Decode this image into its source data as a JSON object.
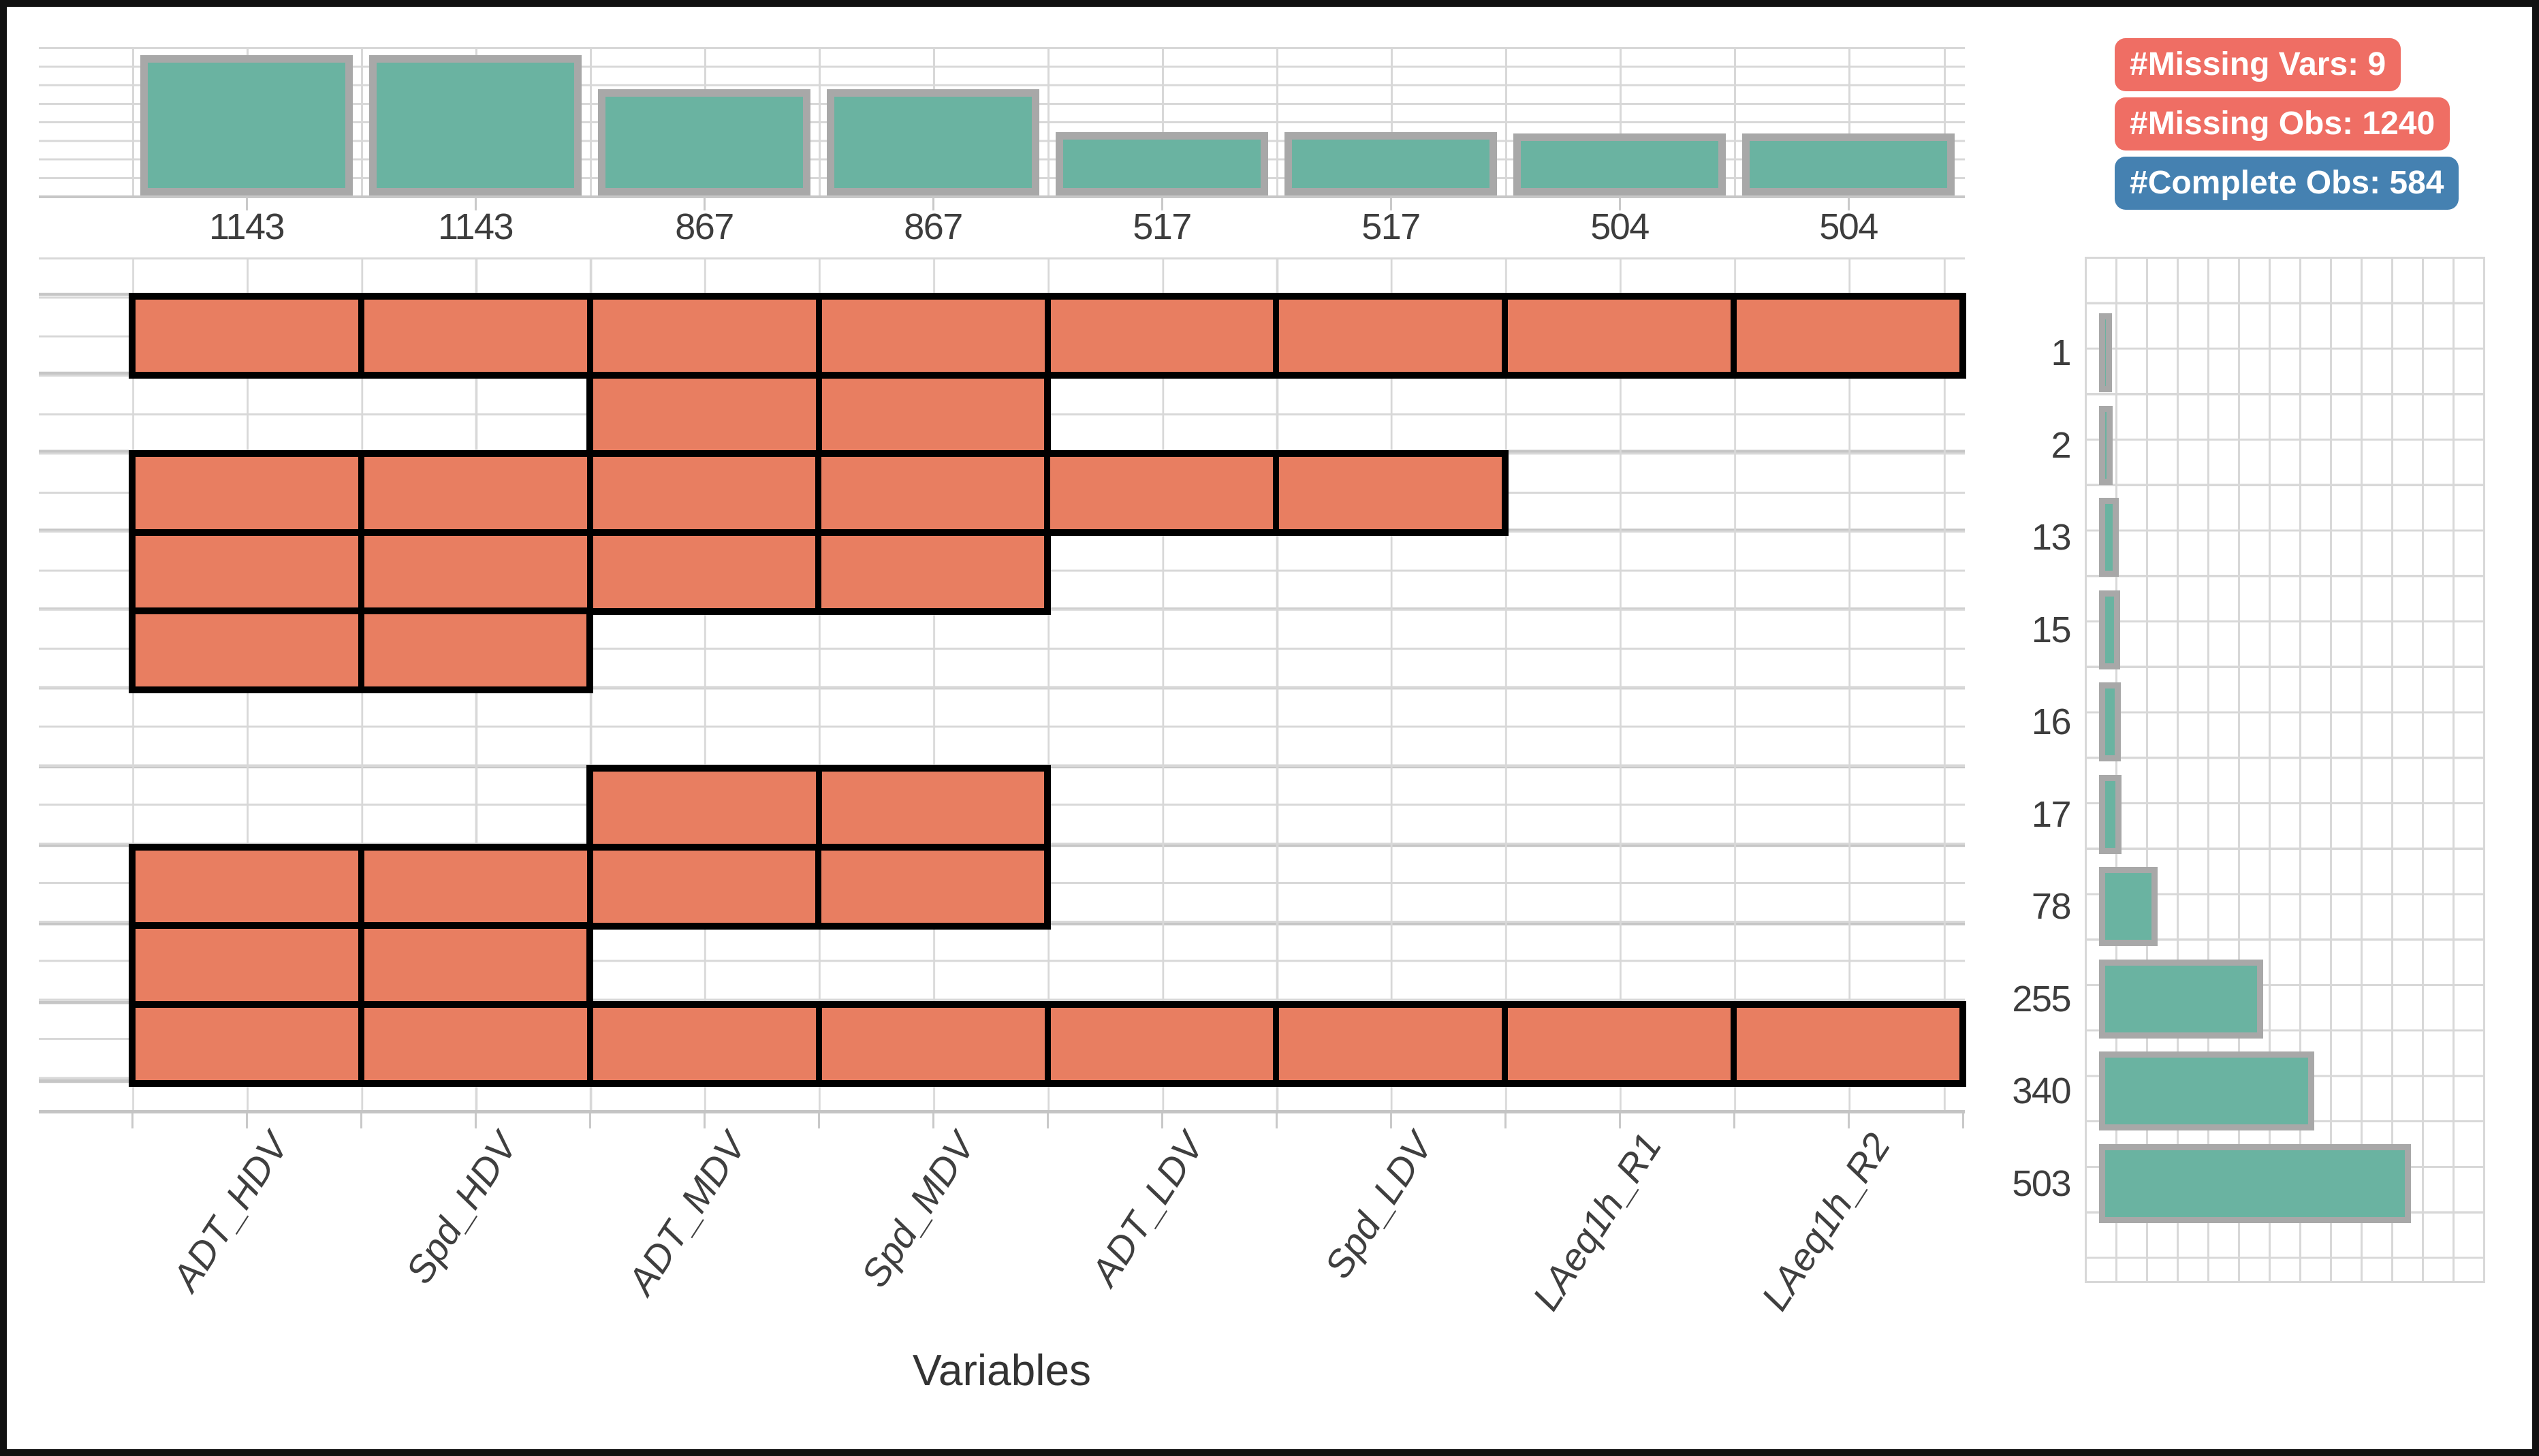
{
  "badges": {
    "missing_vars_label": "#Missing Vars: 9",
    "missing_obs_label": "#Missing Obs: 1240",
    "complete_obs_label": "#Complete Obs: 584"
  },
  "axis": {
    "x_title": "Variables"
  },
  "variables": [
    "ADT_HDV",
    "Spd_HDV",
    "ADT_MDV",
    "Spd_MDV",
    "ADT_LDV",
    "Spd_LDV",
    "LAeq1h_R1",
    "LAeq1h_R2"
  ],
  "top_counts": [
    1143,
    1143,
    867,
    867,
    517,
    517,
    504,
    504
  ],
  "pattern_counts": [
    1,
    2,
    13,
    15,
    16,
    17,
    78,
    255,
    340,
    503
  ],
  "patterns": [
    {
      "count": 1,
      "from": 1,
      "to": 8
    },
    {
      "count": 2,
      "from": 3,
      "to": 4
    },
    {
      "count": 13,
      "from": 1,
      "to": 6
    },
    {
      "count": 15,
      "from": 1,
      "to": 4
    },
    {
      "count": 16,
      "from": 1,
      "to": 2
    },
    {
      "count": 17,
      "from": null,
      "to": null
    },
    {
      "count": 78,
      "from": 3,
      "to": 4
    },
    {
      "count": 255,
      "from": 1,
      "to": 4
    },
    {
      "count": 340,
      "from": 1,
      "to": 2
    },
    {
      "count": 503,
      "from": 1,
      "to": 8
    }
  ],
  "colors": {
    "missing_cell": "#e87e61",
    "present_bar_teal": "#6ab3a1",
    "bar_border_gray": "#a8a8a8",
    "badge_red": "#ef6e64",
    "badge_blue": "#4581b1",
    "gridline": "#d8d8d8",
    "pattern_border": "#000000",
    "text": "#3d3d3d"
  },
  "chart_data": [
    {
      "type": "bar",
      "title": "Missing observations per variable (top margin chart)",
      "categories": [
        "ADT_HDV",
        "Spd_HDV",
        "ADT_MDV",
        "Spd_MDV",
        "ADT_LDV",
        "Spd_LDV",
        "LAeq1h_R1",
        "LAeq1h_R2"
      ],
      "values": [
        1143,
        1143,
        867,
        867,
        517,
        517,
        504,
        504
      ],
      "xlabel": "Variables",
      "ylabel": "",
      "ylim": [
        0,
        1143
      ],
      "grid": true,
      "bar_color": "#6ab3a1",
      "data_labels_shown_below_bars": true
    },
    {
      "type": "heatmap",
      "title": "Missing data pattern matrix (salmon cell = variable missing in pattern)",
      "columns": [
        "ADT_HDV",
        "Spd_HDV",
        "ADT_MDV",
        "Spd_MDV",
        "ADT_LDV",
        "Spd_LDV",
        "LAeq1h_R1",
        "LAeq1h_R2"
      ],
      "rows": [
        {
          "pattern_count": 1,
          "missing_variables": [
            "ADT_HDV",
            "Spd_HDV",
            "ADT_MDV",
            "Spd_MDV",
            "ADT_LDV",
            "Spd_LDV",
            "LAeq1h_R1",
            "LAeq1h_R2"
          ]
        },
        {
          "pattern_count": 2,
          "missing_variables": [
            "ADT_MDV",
            "Spd_MDV"
          ]
        },
        {
          "pattern_count": 13,
          "missing_variables": [
            "ADT_HDV",
            "Spd_HDV",
            "ADT_MDV",
            "Spd_MDV",
            "ADT_LDV",
            "Spd_LDV"
          ]
        },
        {
          "pattern_count": 15,
          "missing_variables": [
            "ADT_HDV",
            "Spd_HDV",
            "ADT_MDV",
            "Spd_MDV"
          ]
        },
        {
          "pattern_count": 16,
          "missing_variables": [
            "ADT_HDV",
            "Spd_HDV"
          ]
        },
        {
          "pattern_count": 17,
          "missing_variables": []
        },
        {
          "pattern_count": 78,
          "missing_variables": [
            "ADT_MDV",
            "Spd_MDV"
          ]
        },
        {
          "pattern_count": 255,
          "missing_variables": [
            "ADT_HDV",
            "Spd_HDV",
            "ADT_MDV",
            "Spd_MDV"
          ]
        },
        {
          "pattern_count": 340,
          "missing_variables": [
            "ADT_HDV",
            "Spd_HDV"
          ]
        },
        {
          "pattern_count": 503,
          "missing_variables": [
            "ADT_HDV",
            "Spd_HDV",
            "ADT_MDV",
            "Spd_MDV",
            "ADT_LDV",
            "Spd_LDV",
            "LAeq1h_R1",
            "LAeq1h_R2"
          ]
        }
      ],
      "missing_color": "#e87e61",
      "grid": true
    },
    {
      "type": "bar",
      "title": "Observations per missing pattern (right margin chart, horizontal bars)",
      "orientation": "horizontal",
      "categories": [
        "1",
        "2",
        "13",
        "15",
        "16",
        "17",
        "78",
        "255",
        "340",
        "503"
      ],
      "values": [
        1,
        2,
        13,
        15,
        16,
        17,
        78,
        255,
        340,
        503
      ],
      "xlim": [
        0,
        503
      ],
      "grid": true,
      "bar_color": "#6ab3a1",
      "legend": "none"
    }
  ],
  "summary": {
    "missing_vars": 9,
    "missing_obs": 1240,
    "complete_obs": 584
  }
}
